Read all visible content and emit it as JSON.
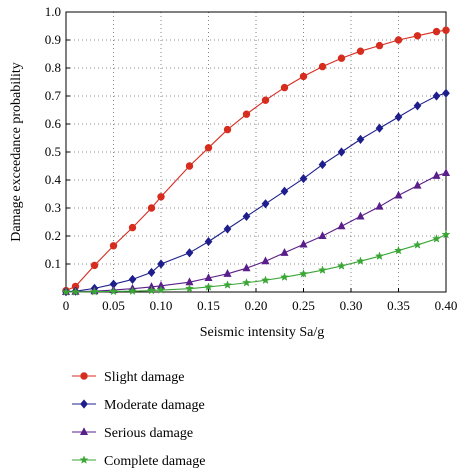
{
  "chart_data": {
    "type": "line",
    "title": "",
    "xlabel": "Seismic intensity Sa/g",
    "ylabel": "Damage exceedance probability",
    "xlim": [
      0,
      0.4
    ],
    "ylim": [
      0,
      1.0
    ],
    "x_ticks": [
      "0",
      "0.05",
      "0.10",
      "0.15",
      "0.20",
      "0.25",
      "0.30",
      "0.35",
      "0.40"
    ],
    "y_ticks": [
      "0.1",
      "0.2",
      "0.3",
      "0.4",
      "0.5",
      "0.6",
      "0.7",
      "0.8",
      "0.9",
      "1.0"
    ],
    "grid": "dotted",
    "legend_position": "below-plot",
    "x": [
      0,
      0.01,
      0.03,
      0.05,
      0.07,
      0.09,
      0.1,
      0.13,
      0.15,
      0.17,
      0.19,
      0.21,
      0.23,
      0.25,
      0.27,
      0.29,
      0.31,
      0.33,
      0.35,
      0.37,
      0.39,
      0.4
    ],
    "series": [
      {
        "name": "Slight damage",
        "color": "#d62d1f",
        "marker": "circle",
        "values": [
          0.005,
          0.02,
          0.095,
          0.165,
          0.23,
          0.3,
          0.34,
          0.45,
          0.515,
          0.58,
          0.635,
          0.685,
          0.73,
          0.77,
          0.805,
          0.835,
          0.86,
          0.88,
          0.9,
          0.915,
          0.93,
          0.935
        ]
      },
      {
        "name": "Moderate damage",
        "color": "#1e1f8c",
        "marker": "diamond",
        "values": [
          0.001,
          0.003,
          0.013,
          0.028,
          0.045,
          0.07,
          0.1,
          0.14,
          0.18,
          0.225,
          0.27,
          0.315,
          0.36,
          0.405,
          0.455,
          0.5,
          0.545,
          0.585,
          0.625,
          0.665,
          0.7,
          0.71
        ]
      },
      {
        "name": "Serious damage",
        "color": "#5a1f8a",
        "marker": "triangle",
        "values": [
          0.0,
          0.001,
          0.003,
          0.007,
          0.012,
          0.018,
          0.022,
          0.035,
          0.05,
          0.065,
          0.085,
          0.11,
          0.14,
          0.17,
          0.2,
          0.235,
          0.27,
          0.305,
          0.345,
          0.38,
          0.415,
          0.425
        ]
      },
      {
        "name": "Complete damage",
        "color": "#3aa635",
        "marker": "star",
        "values": [
          0.0,
          0.0,
          0.001,
          0.002,
          0.003,
          0.005,
          0.007,
          0.012,
          0.018,
          0.025,
          0.033,
          0.042,
          0.053,
          0.065,
          0.078,
          0.093,
          0.11,
          0.128,
          0.148,
          0.168,
          0.19,
          0.205
        ]
      }
    ]
  }
}
